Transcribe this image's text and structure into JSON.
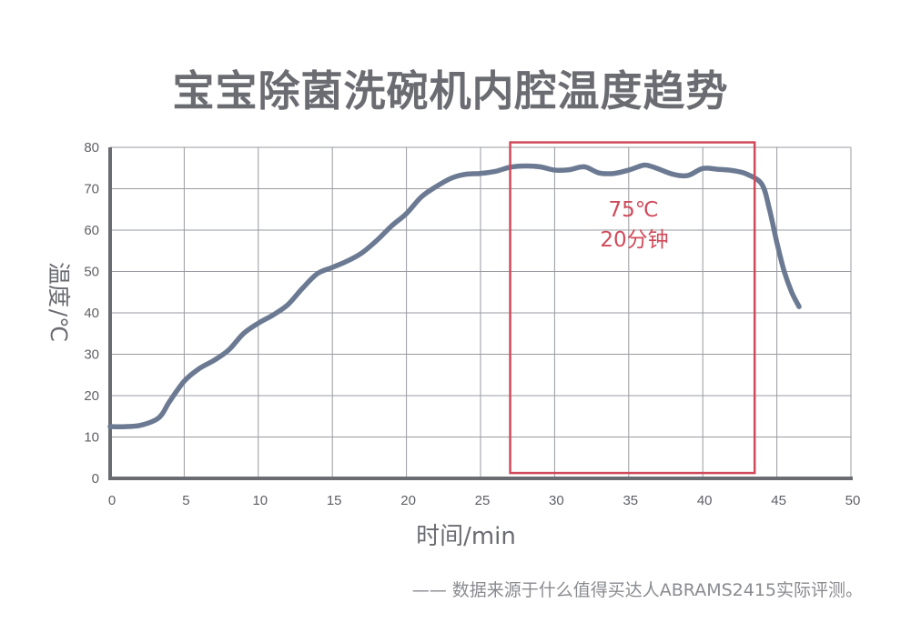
{
  "title": "宝宝除菌洗碗机内腔温度趋势",
  "source_note": "—— 数据来源于什么值得买达人ABRAMS2415实际评测。",
  "colors": {
    "line": "#6b7a92",
    "highlight": "#d04a5a",
    "grid": "#9a9ba0",
    "axis": "#6b6c72"
  },
  "chart_data": {
    "type": "line",
    "title": "宝宝除菌洗碗机内腔温度趋势",
    "xlabel": "时间/min",
    "ylabel_line1": "温度",
    "ylabel_line2": "/℃",
    "xlim": [
      0,
      50
    ],
    "ylim": [
      0,
      80
    ],
    "x_ticks": [
      0,
      5,
      10,
      15,
      20,
      25,
      30,
      35,
      40,
      45,
      50
    ],
    "y_ticks": [
      0,
      10,
      20,
      30,
      40,
      50,
      60,
      70,
      80
    ],
    "grid": true,
    "series": [
      {
        "x": [
          0,
          1,
          2,
          3,
          3.5,
          4,
          5,
          6,
          7,
          8,
          9,
          10,
          11,
          12,
          13,
          14,
          15,
          16,
          17,
          18,
          19,
          20,
          21,
          22,
          23,
          24,
          25,
          26,
          27,
          28,
          29,
          30,
          31,
          32,
          33,
          34,
          35,
          36,
          36.5,
          37,
          38,
          39,
          40,
          41,
          42,
          43,
          44,
          44.5,
          45,
          45.5,
          46,
          46.5
        ],
        "y": [
          12.5,
          12.5,
          12.8,
          14,
          15.5,
          18.5,
          23.5,
          26.5,
          28.5,
          31,
          35,
          37.5,
          39.5,
          42,
          46,
          49.5,
          51,
          52.5,
          54.5,
          57.5,
          61,
          64,
          68,
          70.5,
          72.5,
          73.5,
          73.7,
          74.2,
          75.2,
          75.5,
          75.3,
          74.5,
          74.6,
          75.3,
          73.8,
          73.7,
          74.5,
          75.7,
          75.4,
          74.8,
          73.5,
          73.2,
          74.9,
          74.7,
          74.4,
          73.5,
          71,
          65,
          57,
          50,
          45,
          41.5
        ]
      }
    ],
    "highlight": {
      "x_range": [
        27,
        43.5
      ],
      "y_range": [
        1.3,
        81.2
      ],
      "annotation_line1": "75℃",
      "annotation_line2": "20分钟"
    }
  }
}
